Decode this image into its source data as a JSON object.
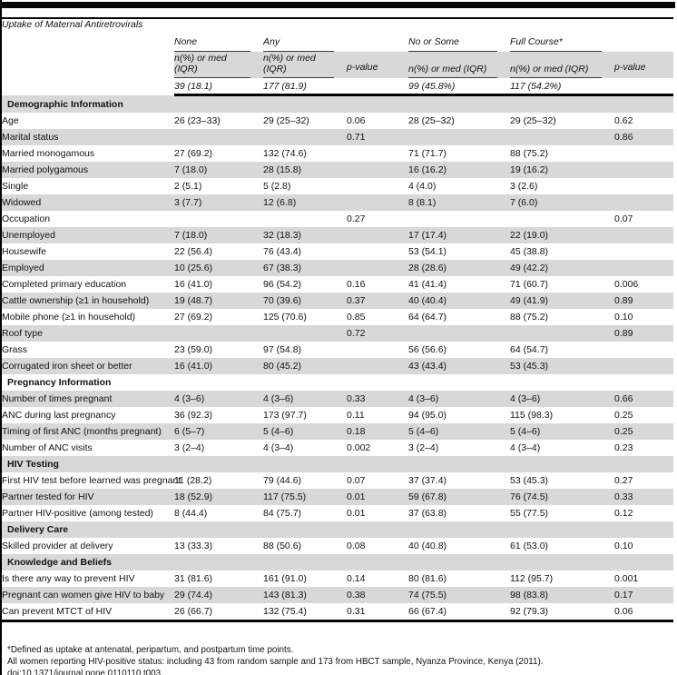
{
  "colors": {
    "stripe": "#d8d8d8",
    "rule": "#000000",
    "text": "#111111"
  },
  "table": {
    "corner_label": "Uptake of Maternal Antiretrovirals",
    "group_headers": [
      "None",
      "Any",
      "No or Some",
      "Full Course*"
    ],
    "measure_label": "n(%) or med (IQR)",
    "pvalue_label": "p-value",
    "totals": [
      "39 (18.1)",
      "177 (81.9)",
      "",
      "99 (45.8%)",
      "117 (54.2%)",
      ""
    ],
    "rows": [
      {
        "type": "section",
        "label": "Demographic Information"
      },
      {
        "type": "data",
        "label": "Age",
        "cells": [
          "26 (23–33)",
          "29 (25–32)",
          "0.06",
          "28 (25–32)",
          "29 (25–32)",
          "0.62"
        ]
      },
      {
        "type": "data",
        "label": "Marital status",
        "cells": [
          "",
          "",
          "0.71",
          "",
          "",
          "0.86"
        ]
      },
      {
        "type": "data",
        "label": "Married monogamous",
        "cells": [
          "27 (69.2)",
          "132 (74.6)",
          "",
          "71 (71.7)",
          "88 (75.2)",
          ""
        ]
      },
      {
        "type": "data",
        "label": "Married polygamous",
        "cells": [
          "7 (18.0)",
          "28 (15.8)",
          "",
          "16 (16.2)",
          "19 (16.2)",
          ""
        ]
      },
      {
        "type": "data",
        "label": "Single",
        "cells": [
          "2 (5.1)",
          "5 (2.8)",
          "",
          "4 (4.0)",
          "3 (2.6)",
          ""
        ]
      },
      {
        "type": "data",
        "label": "Widowed",
        "cells": [
          "3 (7.7)",
          "12 (6.8)",
          "",
          "8 (8.1)",
          "7 (6.0)",
          ""
        ]
      },
      {
        "type": "data",
        "label": "Occupation",
        "cells": [
          "",
          "",
          "0.27",
          "",
          "",
          "0.07"
        ]
      },
      {
        "type": "data",
        "label": "Unemployed",
        "cells": [
          "7 (18.0)",
          "32 (18.3)",
          "",
          "17 (17.4)",
          "22 (19.0)",
          ""
        ]
      },
      {
        "type": "data",
        "label": "Housewife",
        "cells": [
          "22 (56.4)",
          "76 (43.4)",
          "",
          "53 (54.1)",
          "45 (38.8)",
          ""
        ]
      },
      {
        "type": "data",
        "label": "Employed",
        "cells": [
          "10 (25.6)",
          "67 (38.3)",
          "",
          "28 (28.6)",
          "49 (42.2)",
          ""
        ]
      },
      {
        "type": "data",
        "label": "Completed primary education",
        "cells": [
          "16 (41.0)",
          "96 (54.2)",
          "0.16",
          "41 (41.4)",
          "71 (60.7)",
          "0.006"
        ]
      },
      {
        "type": "data",
        "label": "Cattle ownership (≥1 in household)",
        "cells": [
          "19 (48.7)",
          "70 (39.6)",
          "0.37",
          "40 (40.4)",
          "49 (41.9)",
          "0.89"
        ]
      },
      {
        "type": "data",
        "label": "Mobile phone (≥1 in household)",
        "cells": [
          "27 (69.2)",
          "125 (70.6)",
          "0.85",
          "64 (64.7)",
          "88 (75.2)",
          "0.10"
        ]
      },
      {
        "type": "data",
        "label": "Roof type",
        "cells": [
          "",
          "",
          "0.72",
          "",
          "",
          "0.89"
        ]
      },
      {
        "type": "data",
        "label": "Grass",
        "cells": [
          "23 (59.0)",
          "97 (54.8)",
          "",
          "56 (56.6)",
          "64 (54.7)",
          ""
        ]
      },
      {
        "type": "data",
        "label": "Corrugated iron sheet or better",
        "cells": [
          "16 (41.0)",
          "80 (45.2)",
          "",
          "43 (43.4)",
          "53 (45.3)",
          ""
        ]
      },
      {
        "type": "section",
        "label": "Pregnancy Information"
      },
      {
        "type": "data",
        "label": "Number of times pregnant",
        "cells": [
          "4 (3–6)",
          "4 (3–6)",
          "0.33",
          "4 (3–6)",
          "4 (3–6)",
          "0.66"
        ]
      },
      {
        "type": "data",
        "label": "ANC during last pregnancy",
        "cells": [
          "36 (92.3)",
          "173 (97.7)",
          "0.11",
          "94 (95.0)",
          "115 (98.3)",
          "0.25"
        ]
      },
      {
        "type": "data",
        "label": "Timing of first ANC (months pregnant)",
        "cells": [
          "6 (5–7)",
          "5 (4–6)",
          "0.18",
          "5 (4–6)",
          "5 (4–6)",
          "0.25"
        ]
      },
      {
        "type": "data",
        "label": "Number of ANC visits",
        "cells": [
          "3 (2–4)",
          "4 (3–4)",
          "0.002",
          "3 (2–4)",
          "4 (3–4)",
          "0.23"
        ]
      },
      {
        "type": "section",
        "label": "HIV Testing"
      },
      {
        "type": "data",
        "label": "First HIV test before learned was pregnant",
        "cells": [
          "11 (28.2)",
          "79 (44.6)",
          "0.07",
          "37 (37.4)",
          "53 (45.3)",
          "0.27"
        ]
      },
      {
        "type": "data",
        "label": "Partner tested for HIV",
        "cells": [
          "18 (52.9)",
          "117 (75.5)",
          "0.01",
          "59 (67.8)",
          "76 (74.5)",
          "0.33"
        ]
      },
      {
        "type": "data",
        "label": "Partner HIV-positive (among tested)",
        "cells": [
          "8 (44.4)",
          "84 (75.7)",
          "0.01",
          "37 (63.8)",
          "55 (77.5)",
          "0.12"
        ]
      },
      {
        "type": "section",
        "label": "Delivery Care"
      },
      {
        "type": "data",
        "label": "Skilled provider at delivery",
        "cells": [
          "13 (33.3)",
          "88 (50.6)",
          "0.08",
          "40 (40.8)",
          "61 (53.0)",
          "0.10"
        ]
      },
      {
        "type": "section",
        "label": "Knowledge and Beliefs"
      },
      {
        "type": "data",
        "label": "Is there any way to prevent HIV",
        "cells": [
          "31 (81.6)",
          "161 (91.0)",
          "0.14",
          "80 (81.6)",
          "112 (95.7)",
          "0.001"
        ]
      },
      {
        "type": "data",
        "label": "Pregnant can women give HIV to baby",
        "cells": [
          "29 (74.4)",
          "143 (81.3)",
          "0.38",
          "74 (75.5)",
          "98 (83.8)",
          "0.17"
        ]
      },
      {
        "type": "data",
        "label": "Can prevent MTCT of HIV",
        "cells": [
          "26 (66.7)",
          "132 (75.4)",
          "0.31",
          "66 (67.4)",
          "92 (79.3)",
          "0.06"
        ]
      }
    ]
  },
  "footnotes": [
    "*Defined as uptake at antenatal, peripartum, and postpartum time points.",
    "All women reporting HIV-positive status: including 43 from random sample and 173 from HBCT sample, Nyanza Province, Kenya (2011).",
    "doi:10.1371/journal.pone.0110110.t003"
  ]
}
